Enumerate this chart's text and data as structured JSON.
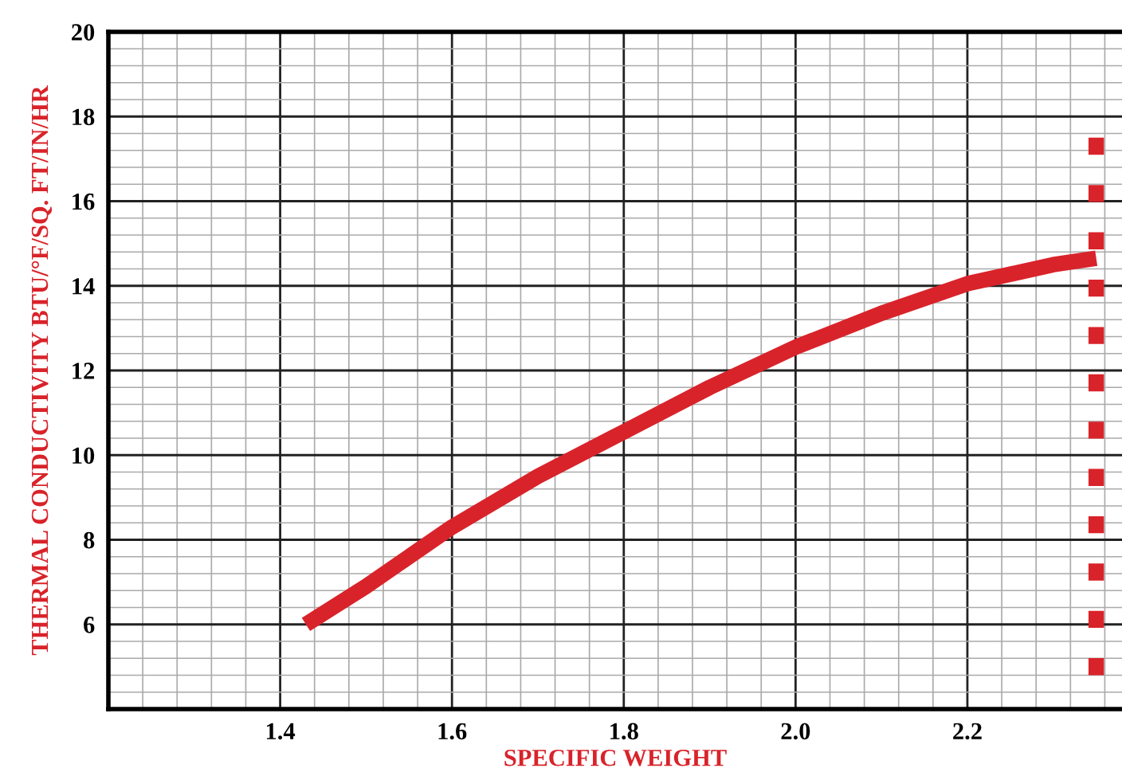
{
  "chart_data": {
    "type": "line",
    "xlabel": "SPECIFIC WEIGHT",
    "ylabel": "THERMAL CONDUCTIVITY BTU/°F/SQ. FT/IN/HR",
    "series": [
      {
        "color": "#d9232a",
        "x": [
          1.43,
          1.5,
          1.6,
          1.7,
          1.8,
          1.9,
          2.0,
          2.1,
          2.2,
          2.3,
          2.35
        ],
        "values": [
          6.0,
          6.9,
          8.3,
          9.5,
          10.55,
          11.6,
          12.55,
          13.35,
          14.05,
          14.5,
          14.65
        ]
      },
      {
        "color": "#d9232a",
        "x": [
          2.35,
          2.35
        ],
        "values": [
          4.8,
          17.5
        ],
        "line_style": "dotted"
      }
    ],
    "xlim": [
      1.2,
      2.38
    ],
    "ylim": [
      4,
      20
    ],
    "xticks": [
      {
        "value": 1.2,
        "label": null
      },
      1.4,
      1.6,
      1.8,
      {
        "value": 2.0,
        "label": "2.0"
      },
      2.2
    ],
    "yticks": [
      {
        "value": 4,
        "label": null
      },
      6,
      8,
      10,
      12,
      14,
      16,
      18,
      20
    ],
    "grid": true
  }
}
